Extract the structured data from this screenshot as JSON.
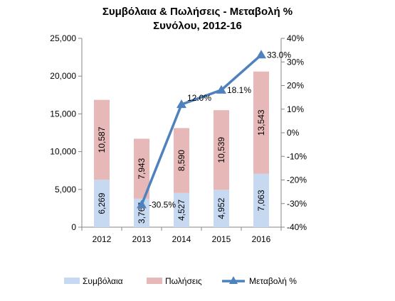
{
  "chart_data": {
    "type": "bar",
    "title_line1": "Συμβόλαια & Πωλήσεις - Μεταβολή %",
    "title_line2": "Συνόλου, 2012-16",
    "categories": [
      "2012",
      "2013",
      "2014",
      "2015",
      "2016"
    ],
    "series": [
      {
        "name": "Συμβόλαια",
        "type": "bar",
        "stack": "total",
        "axis": "left",
        "color": "#c6d9f1",
        "values": [
          6269,
          3767,
          4527,
          4952,
          7063
        ],
        "labels": [
          "6,269",
          "3,767",
          "4,527",
          "4,952",
          "7,063"
        ]
      },
      {
        "name": "Πωλήσεις",
        "type": "bar",
        "stack": "total",
        "axis": "left",
        "color": "#e6b9b8",
        "values": [
          10587,
          7943,
          8590,
          10539,
          13543
        ],
        "labels": [
          "10,587",
          "7,943",
          "8,590",
          "10,539",
          "13,543"
        ]
      },
      {
        "name": "Μεταβολή %",
        "type": "line",
        "axis": "right",
        "color": "#4f81bd",
        "marker": "triangle",
        "values": [
          null,
          -30.5,
          12.0,
          18.1,
          33.0
        ],
        "labels": [
          "",
          "-30.5%",
          "12.0%",
          "18.1%",
          "33.0%"
        ]
      }
    ],
    "left_axis": {
      "ylim": [
        0,
        25000
      ],
      "ticks": [
        "0",
        "5,000",
        "10,000",
        "15,000",
        "20,000",
        "25,000"
      ]
    },
    "right_axis": {
      "ylim": [
        -40,
        40
      ],
      "ticks": [
        "-40%",
        "-30%",
        "-20%",
        "-10%",
        "0%",
        "10%",
        "20%",
        "30%",
        "40%"
      ]
    },
    "grid": false,
    "legend_position": "bottom"
  }
}
